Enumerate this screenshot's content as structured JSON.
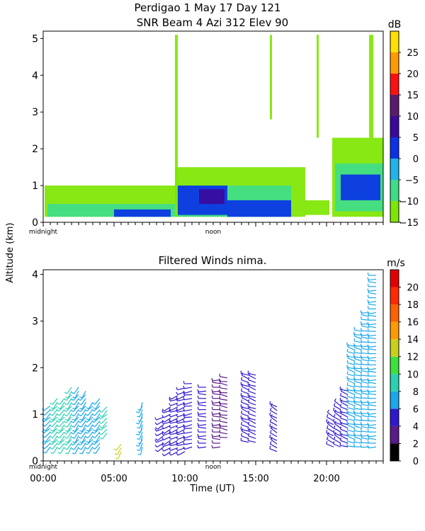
{
  "header": {
    "line1": "Perdigao    1 May 17 Day 121",
    "line2": "SNR Beam 4 Azi 312 Elev 90"
  },
  "shared": {
    "ylabel": "Altitude (km)",
    "xlabel": "Time (UT)",
    "midnight_label": "midnight",
    "noon_label": "noon",
    "x_ticks": [
      "00:00",
      "05:00",
      "10:00",
      "15:00",
      "20:00"
    ]
  },
  "snr_panel": {
    "unit": "dB",
    "colorbar_ticks": [
      "25",
      "20",
      "15",
      "10",
      "5",
      "0",
      "−5",
      "−10",
      "−15"
    ]
  },
  "wind_panel": {
    "title": "Filtered Winds nima.",
    "unit": "m/s",
    "colorbar_ticks": [
      "20",
      "18",
      "16",
      "14",
      "12",
      "10",
      "8",
      "6",
      "4",
      "2",
      "0"
    ]
  },
  "chart_data": [
    {
      "type": "heatmap",
      "xlabel": "",
      "ylabel": "Altitude (km)",
      "xlim": [
        0,
        24
      ],
      "ylim": [
        0,
        5.2
      ],
      "y_ticks": [
        0,
        1,
        2,
        3,
        4,
        5
      ],
      "colorbar": {
        "label": "dB",
        "range": [
          -15,
          30
        ],
        "ticks": [
          25,
          20,
          15,
          10,
          5,
          0,
          -5,
          -10,
          -15
        ],
        "bands": [
          {
            "from": -15,
            "to": -10,
            "color": "#7ee600"
          },
          {
            "from": -10,
            "to": -5,
            "color": "#3fdc8a"
          },
          {
            "from": -5,
            "to": 0,
            "color": "#1fb4ea"
          },
          {
            "from": 0,
            "to": 5,
            "color": "#0a32e8"
          },
          {
            "from": 5,
            "to": 10,
            "color": "#3a0a9c"
          },
          {
            "from": 10,
            "to": 15,
            "color": "#5a1a6e"
          },
          {
            "from": 15,
            "to": 20,
            "color": "#ff1010"
          },
          {
            "from": 20,
            "to": 25,
            "color": "#ff9a00"
          },
          {
            "from": 25,
            "to": 30,
            "color": "#ffe000"
          }
        ]
      },
      "regions": [
        {
          "t0": 0.1,
          "t1": 9.3,
          "z0": 0.15,
          "z1": 1.0,
          "snr": -12
        },
        {
          "t0": 0.3,
          "t1": 9.3,
          "z0": 0.15,
          "z1": 0.5,
          "snr": -6
        },
        {
          "t0": 5.0,
          "t1": 9.0,
          "z0": 0.15,
          "z1": 0.35,
          "snr": 1
        },
        {
          "t0": 9.3,
          "t1": 18.5,
          "z0": 0.15,
          "z1": 1.5,
          "snr": -12
        },
        {
          "t0": 9.3,
          "t1": 17.5,
          "z0": 0.15,
          "z1": 1.0,
          "snr": -6
        },
        {
          "t0": 9.5,
          "t1": 13.0,
          "z0": 0.2,
          "z1": 1.0,
          "snr": 1
        },
        {
          "t0": 13.0,
          "t1": 17.5,
          "z0": 0.15,
          "z1": 0.6,
          "snr": 2
        },
        {
          "t0": 11.0,
          "t1": 12.8,
          "z0": 0.5,
          "z1": 0.9,
          "snr": 7
        },
        {
          "t0": 18.5,
          "t1": 20.2,
          "z0": 0.2,
          "z1": 0.6,
          "snr": -12
        },
        {
          "t0": 20.4,
          "t1": 24.0,
          "z0": 0.15,
          "z1": 2.3,
          "snr": -12
        },
        {
          "t0": 20.6,
          "t1": 24.0,
          "z0": 0.3,
          "z1": 1.6,
          "snr": -6
        },
        {
          "t0": 21.0,
          "t1": 23.8,
          "z0": 0.6,
          "z1": 1.3,
          "snr": 1
        },
        {
          "t0": 9.3,
          "t1": 9.5,
          "z0": 0.15,
          "z1": 5.1,
          "snr": -12
        },
        {
          "t0": 16.0,
          "t1": 16.15,
          "z0": 2.8,
          "z1": 5.1,
          "snr": -12
        },
        {
          "t0": 19.3,
          "t1": 19.45,
          "z0": 2.3,
          "z1": 5.1,
          "snr": -12
        },
        {
          "t0": 23.0,
          "t1": 23.3,
          "z0": 2.3,
          "z1": 5.1,
          "snr": -12
        }
      ]
    },
    {
      "type": "scatter",
      "title": "Filtered Winds nima.",
      "xlabel": "Time (UT)",
      "ylabel": "Altitude (km)",
      "xlim": [
        0,
        24
      ],
      "ylim": [
        0,
        4.1
      ],
      "y_ticks": [
        0,
        1,
        2,
        3,
        4
      ],
      "colorbar": {
        "label": "m/s",
        "range": [
          0,
          22
        ],
        "ticks": [
          20,
          18,
          16,
          14,
          12,
          10,
          8,
          6,
          4,
          2,
          0
        ],
        "bands": [
          {
            "from": 0,
            "to": 2,
            "color": "#000000"
          },
          {
            "from": 2,
            "to": 4,
            "color": "#5a1a8a"
          },
          {
            "from": 4,
            "to": 6,
            "color": "#2e18d0"
          },
          {
            "from": 6,
            "to": 8,
            "color": "#19a8ee"
          },
          {
            "from": 8,
            "to": 10,
            "color": "#28d2b0"
          },
          {
            "from": 10,
            "to": 12,
            "color": "#3ce23c"
          },
          {
            "from": 12,
            "to": 14,
            "color": "#c8d01c"
          },
          {
            "from": 14,
            "to": 16,
            "color": "#ff9a00"
          },
          {
            "from": 16,
            "to": 18,
            "color": "#ff6000"
          },
          {
            "from": 18,
            "to": 20,
            "color": "#ff2a00"
          },
          {
            "from": 20,
            "to": 22,
            "color": "#e40000"
          }
        ]
      },
      "columns": [
        {
          "t": 0.5,
          "z0": 0.3,
          "z1": 1.2,
          "speed": 7,
          "dir": 225
        },
        {
          "t": 1.0,
          "z0": 0.3,
          "z1": 1.4,
          "speed": 9,
          "dir": 220
        },
        {
          "t": 1.5,
          "z0": 0.3,
          "z1": 1.4,
          "speed": 8,
          "dir": 220
        },
        {
          "t": 2.0,
          "z0": 0.3,
          "z1": 1.6,
          "speed": 8,
          "dir": 215
        },
        {
          "t": 2.5,
          "z0": 0.3,
          "z1": 1.6,
          "speed": 7,
          "dir": 215
        },
        {
          "t": 3.0,
          "z0": 0.3,
          "z1": 1.5,
          "speed": 7,
          "dir": 215
        },
        {
          "t": 3.5,
          "z0": 0.3,
          "z1": 1.3,
          "speed": 7,
          "dir": 220
        },
        {
          "t": 4.0,
          "z0": 0.3,
          "z1": 1.4,
          "speed": 7,
          "dir": 220
        },
        {
          "t": 4.5,
          "z0": 0.6,
          "z1": 1.2,
          "speed": 9,
          "dir": 225
        },
        {
          "t": 5.5,
          "z0": 0.2,
          "z1": 0.4,
          "speed": 12,
          "dir": 210
        },
        {
          "t": 7.0,
          "z0": 0.3,
          "z1": 1.3,
          "speed": 6,
          "dir": 200
        },
        {
          "t": 8.5,
          "z0": 0.3,
          "z1": 1.0,
          "speed": 4,
          "dir": 240
        },
        {
          "t": 9.0,
          "z0": 0.2,
          "z1": 1.2,
          "speed": 4,
          "dir": 245
        },
        {
          "t": 9.5,
          "z0": 0.2,
          "z1": 1.4,
          "speed": 4,
          "dir": 250
        },
        {
          "t": 10.0,
          "z0": 0.2,
          "z1": 1.6,
          "speed": 4,
          "dir": 250
        },
        {
          "t": 10.5,
          "z0": 0.3,
          "z1": 1.7,
          "speed": 5,
          "dir": 260
        },
        {
          "t": 11.5,
          "z0": 0.3,
          "z1": 1.6,
          "speed": 4,
          "dir": 270
        },
        {
          "t": 12.5,
          "z0": 0.3,
          "z1": 1.8,
          "speed": 3,
          "dir": 270
        },
        {
          "t": 13.0,
          "z0": 0.5,
          "z1": 1.8,
          "speed": 3,
          "dir": 280
        },
        {
          "t": 14.5,
          "z0": 0.4,
          "z1": 1.9,
          "speed": 4,
          "dir": 290
        },
        {
          "t": 15.0,
          "z0": 0.4,
          "z1": 1.9,
          "speed": 4,
          "dir": 290
        },
        {
          "t": 16.5,
          "z0": 0.2,
          "z1": 1.2,
          "speed": 4,
          "dir": 300
        },
        {
          "t": 20.5,
          "z0": 0.3,
          "z1": 1.0,
          "speed": 4,
          "dir": 300
        },
        {
          "t": 21.0,
          "z0": 0.3,
          "z1": 1.2,
          "speed": 5,
          "dir": 300
        },
        {
          "t": 21.5,
          "z0": 0.3,
          "z1": 1.5,
          "speed": 5,
          "dir": 290
        },
        {
          "t": 22.0,
          "z0": 0.3,
          "z1": 2.5,
          "speed": 7,
          "dir": 285
        },
        {
          "t": 22.5,
          "z0": 0.3,
          "z1": 2.8,
          "speed": 7,
          "dir": 280
        },
        {
          "t": 23.0,
          "z0": 0.3,
          "z1": 3.2,
          "speed": 7,
          "dir": 275
        },
        {
          "t": 23.5,
          "z0": 0.3,
          "z1": 4.0,
          "speed": 7,
          "dir": 270
        }
      ]
    }
  ]
}
